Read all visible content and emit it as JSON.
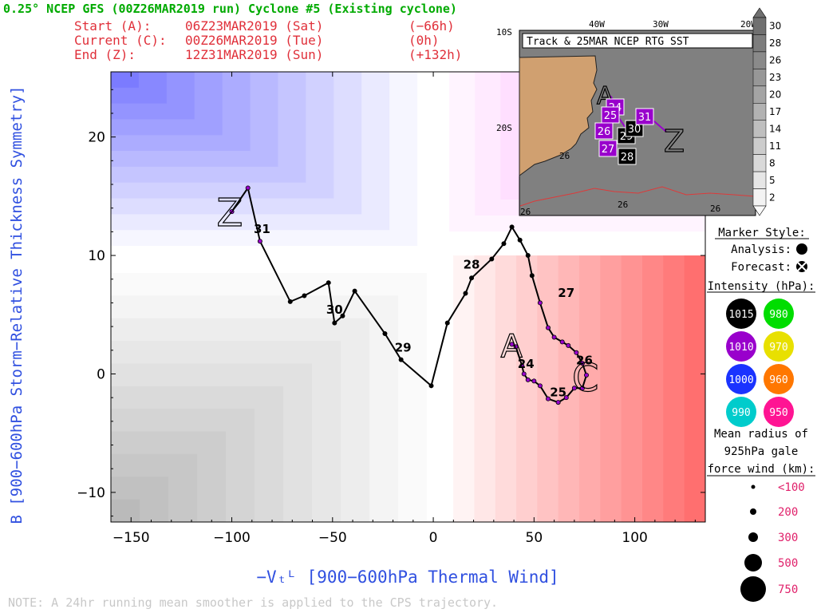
{
  "header": {
    "title": "0.25° NCEP GFS (00Z26MAR2019 run) Cyclone #5 (Existing cyclone)",
    "start_label": "Start (A):",
    "start_time": "06Z23MAR2019 (Sat)",
    "start_offset": "(−66h)",
    "current_label": "Current (C):",
    "current_time": "00Z26MAR2019 (Tue)",
    "current_offset": "(0h)",
    "end_label": "End (Z):",
    "end_time": "12Z31MAR2019 (Sun)",
    "end_offset": "(+132h)",
    "title_color": "#00aa00",
    "info_color": "#e0303a"
  },
  "axes": {
    "ylabel": "B [900−600hPa Storm−Relative Thickness Symmetry]",
    "xlabel": "−Vₜᴸ [900−600hPa Thermal Wind]",
    "label_color": "#3050e0"
  },
  "note": "NOTE:  A 24hr running mean smoother is applied to the CPS trajectory.",
  "chart_data": {
    "type": "scatter",
    "subtype": "cyclone-phase-space-trajectory",
    "xlim": [
      -160,
      135
    ],
    "ylim": [
      -12.5,
      25.5
    ],
    "xticks": [
      -150,
      -100,
      -50,
      0,
      50,
      100
    ],
    "yticks": [
      -10,
      0,
      10,
      20
    ],
    "background_regions": [
      {
        "region": "B>10, V<0",
        "color": "#6666ff"
      },
      {
        "region": "B>10, V>0",
        "color": "#ff66ff"
      },
      {
        "region": "B<10, V<0",
        "color": "#808080"
      },
      {
        "region": "B<10, V>0",
        "color": "#ff6666"
      }
    ],
    "track": {
      "x": [
        39,
        41,
        44,
        45,
        47,
        50,
        53,
        57,
        62,
        66,
        70,
        74,
        76,
        74,
        71,
        67,
        64,
        60,
        57,
        53,
        49,
        47,
        43,
        39,
        35,
        29,
        19,
        16,
        7,
        -1,
        -16,
        -24,
        -39,
        -45,
        -49,
        -52,
        -64,
        -71,
        -86,
        -92,
        -100
      ],
      "y": [
        2.5,
        2.3,
        0.7,
        0,
        -0.5,
        -0.6,
        -1.0,
        -2.1,
        -2.4,
        -2.0,
        -1.2,
        -1.2,
        -0.1,
        0.9,
        1.8,
        2.4,
        2.7,
        3.1,
        3.9,
        6.0,
        8.3,
        10.0,
        11.3,
        12.4,
        11.0,
        9.7,
        8.1,
        6.8,
        4.3,
        -1.0,
        1.2,
        3.4,
        7.0,
        4.9,
        4.3,
        7.7,
        6.6,
        6.1,
        11.2,
        15.7,
        13.7
      ],
      "marker_kind": [
        "analysis",
        "analysis",
        "analysis",
        "analysis",
        "analysis",
        "analysis",
        "analysis",
        "analysis",
        "analysis",
        "analysis",
        "analysis",
        "analysis",
        "analysis",
        "forecast",
        "forecast",
        "forecast",
        "forecast",
        "forecast",
        "forecast",
        "forecast",
        "forecast",
        "forecast",
        "forecast",
        "forecast",
        "forecast",
        "forecast",
        "forecast",
        "forecast",
        "forecast",
        "forecast",
        "forecast",
        "forecast",
        "forecast",
        "forecast",
        "forecast",
        "forecast",
        "forecast",
        "forecast",
        "forecast",
        "forecast",
        "forecast"
      ],
      "intensity_color": [
        "#9900cc",
        "#9900cc",
        "#9900cc",
        "#9900cc",
        "#9900cc",
        "#9900cc",
        "#9900cc",
        "#9900cc",
        "#9900cc",
        "#9900cc",
        "#9900cc",
        "#9900cc",
        "#9900cc",
        "#9900cc",
        "#9900cc",
        "#9900cc",
        "#9900cc",
        "#9900cc",
        "#9900cc",
        "#9900cc",
        "#000000",
        "#000000",
        "#000000",
        "#000000",
        "#000000",
        "#000000",
        "#000000",
        "#000000",
        "#000000",
        "#000000",
        "#000000",
        "#000000",
        "#000000",
        "#000000",
        "#000000",
        "#000000",
        "#000000",
        "#000000",
        "#9900cc",
        "#9900cc",
        "#9900cc"
      ]
    },
    "day_labels": [
      {
        "text": "24",
        "x": 46,
        "y": 0.5
      },
      {
        "text": "25",
        "x": 62,
        "y": -1.9
      },
      {
        "text": "26",
        "x": 75,
        "y": 0.8
      },
      {
        "text": "27",
        "x": 66,
        "y": 6.5
      },
      {
        "text": "28",
        "x": 19,
        "y": 8.9
      },
      {
        "text": "29",
        "x": -15,
        "y": 1.9
      },
      {
        "text": "30",
        "x": -49,
        "y": 5.1
      },
      {
        "text": "31",
        "x": -85,
        "y": 11.9
      }
    ],
    "point_labels": [
      {
        "text": "A",
        "x": 39,
        "y": 2.5
      },
      {
        "text": "C",
        "x": 76,
        "y": -0.1
      },
      {
        "text": "Z",
        "x": -100,
        "y": 13.7
      }
    ]
  },
  "inset_map": {
    "title": "Track & 25MAR NCEP RTG SST",
    "lon_labels": [
      "40W",
      "30W",
      "20W"
    ],
    "lat_labels": [
      "10S",
      "20S"
    ],
    "contour_labels": [
      "26",
      "26",
      "26",
      "26"
    ],
    "point_labels": [
      "A",
      "Z"
    ],
    "day_boxes": [
      {
        "text": "24",
        "color": "#9900cc"
      },
      {
        "text": "25",
        "color": "#9900cc"
      },
      {
        "text": "26",
        "color": "#9900cc"
      },
      {
        "text": "27",
        "color": "#9900cc"
      },
      {
        "text": "28",
        "color": "#000000"
      },
      {
        "text": "29",
        "color": "#000000"
      },
      {
        "text": "30",
        "color": "#000000"
      },
      {
        "text": "31",
        "color": "#9900cc"
      }
    ],
    "sst_colorbar": [
      "30",
      "28",
      "26",
      "23",
      "20",
      "17",
      "14",
      "11",
      "8",
      "5",
      "2"
    ]
  },
  "legend": {
    "marker_style_title": "Marker Style:",
    "analysis_label": "Analysis:",
    "forecast_label": "Forecast:",
    "intensity_title": "Intensity (hPa):",
    "intensity": [
      {
        "label": "1015",
        "color": "#000000"
      },
      {
        "label": "980",
        "color": "#00dd00"
      },
      {
        "label": "1010",
        "color": "#9900cc"
      },
      {
        "label": "970",
        "color": "#e8e000"
      },
      {
        "label": "1000",
        "color": "#1a33ff"
      },
      {
        "label": "960",
        "color": "#ff7700"
      },
      {
        "label": "990",
        "color": "#00cccc"
      },
      {
        "label": "950",
        "color": "#ff1493"
      }
    ],
    "radius_title_1": "Mean radius of",
    "radius_title_2": "925hPa gale",
    "radius_title_3": "force wind (km):",
    "radius_sizes": [
      "<100",
      "200",
      "300",
      "500",
      "750"
    ],
    "radius_color": "#e0206a"
  }
}
